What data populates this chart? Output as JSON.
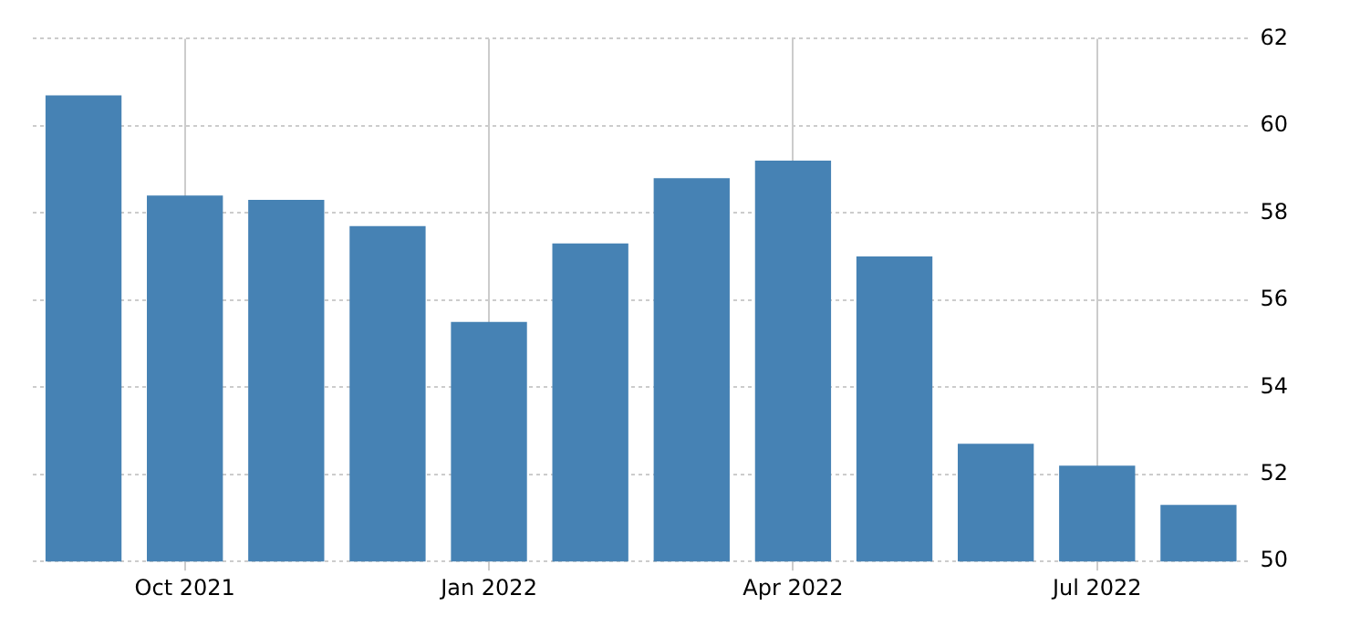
{
  "chart_data": {
    "type": "bar",
    "categories": [
      null,
      "Oct 2021",
      null,
      null,
      "Jan 2022",
      null,
      null,
      "Apr 2022",
      null,
      null,
      "Jul 2022",
      null
    ],
    "values": [
      60.7,
      58.4,
      58.3,
      57.7,
      55.5,
      57.3,
      58.8,
      59.2,
      57.0,
      52.7,
      52.2,
      51.3
    ],
    "color": "#4682b4",
    "ylim": [
      50,
      62
    ],
    "yticks": [
      50,
      52,
      54,
      56,
      58,
      60,
      62
    ],
    "grid": true,
    "legend": false
  }
}
